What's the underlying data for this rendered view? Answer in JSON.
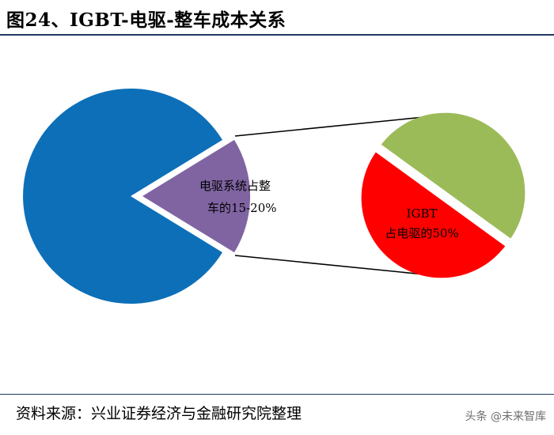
{
  "header": {
    "title": "图24、IGBT-电驱-整车成本关系"
  },
  "footer": {
    "source": "资料来源：兴业证券经济与金融研究院整理",
    "watermark": "头条 @未来智库"
  },
  "colors": {
    "vehicle": "#0d6fb8",
    "e_drive": "#8064a2",
    "igbt": "#ff0000",
    "rest": "#9bbb59",
    "rule": "#1f3864"
  },
  "chart_data": [
    {
      "type": "pie",
      "title": "",
      "slices": [
        {
          "name": "",
          "value": 82.5,
          "color": "#0d6fb8"
        },
        {
          "name": "电驱系统",
          "value": 17.5,
          "color": "#8064a2",
          "exploded": true
        }
      ],
      "annotation": {
        "line1": "电驱系统占整",
        "line2": "车的15-20%"
      }
    },
    {
      "type": "pie",
      "title": "",
      "slices": [
        {
          "name": "IGBT",
          "value": 50,
          "color": "#ff0000"
        },
        {
          "name": "",
          "value": 50,
          "color": "#9bbb59"
        }
      ],
      "annotation": {
        "line1": "IGBT",
        "line2": "占电驱的50%"
      }
    }
  ]
}
